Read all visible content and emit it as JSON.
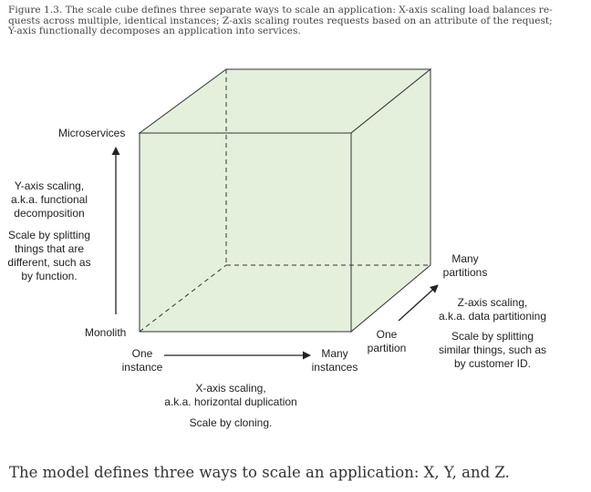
{
  "caption": {
    "line1": "Figure 1.3. The scale cube defines three separate ways to scale an application: X-axis scaling load balances re-",
    "line2": "quests across multiple, identical instances; Z-axis scaling routes requests based on an attribute of the request;",
    "line3": "Y-axis functionally decomposes an application into services."
  },
  "cube": {
    "face_color": "#e4f0dc",
    "edge_color": "#333333"
  },
  "y_axis": {
    "top_label": "Microservices",
    "bottom_label": "Monolith",
    "title_lines": [
      "Y-axis scaling,",
      "a.k.a. functional",
      "decomposition"
    ],
    "desc_lines": [
      "Scale by splitting",
      "things that are",
      "different, such as",
      "by function."
    ]
  },
  "x_axis": {
    "start_lines": [
      "One",
      "instance"
    ],
    "end_lines": [
      "Many",
      "instances"
    ],
    "title_lines": [
      "X-axis scaling,",
      "a.k.a. horizontal duplication"
    ],
    "desc": "Scale by cloning."
  },
  "z_axis": {
    "start_lines": [
      "One",
      "partition"
    ],
    "end_lines": [
      "Many",
      "partitions"
    ],
    "title_lines": [
      "Z-axis scaling,",
      "a.k.a. data partitioning"
    ],
    "desc_lines": [
      "Scale by splitting",
      "similar things, such as",
      "by customer ID."
    ]
  },
  "footer": "The model defines three ways to scale an application: X, Y, and Z."
}
